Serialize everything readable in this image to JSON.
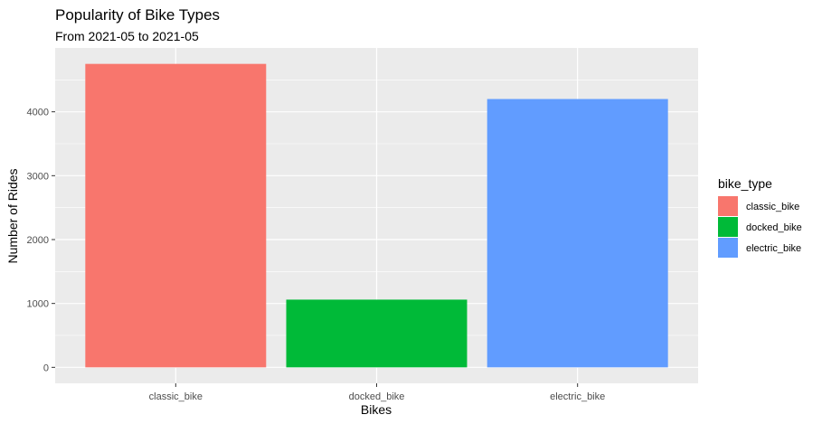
{
  "chart_data": {
    "type": "bar",
    "title": "Popularity of Bike Types",
    "subtitle": "From 2021-05 to 2021-05",
    "xlabel": "Bikes",
    "ylabel": "Number of Rides",
    "categories": [
      "classic_bike",
      "docked_bike",
      "electric_bike"
    ],
    "values": [
      4750,
      1060,
      4200
    ],
    "colors": [
      "#F8766D",
      "#00BA38",
      "#619CFF"
    ],
    "ylim": [
      -250,
      5000
    ],
    "yticks": [
      0,
      1000,
      2000,
      3000,
      4000
    ],
    "grid": true,
    "legend": {
      "title": "bike_type",
      "placement": "right",
      "entries": [
        "classic_bike",
        "docked_bike",
        "electric_bike"
      ]
    },
    "panel_background": "#EBEBEB",
    "grid_color": "#FFFFFF"
  }
}
